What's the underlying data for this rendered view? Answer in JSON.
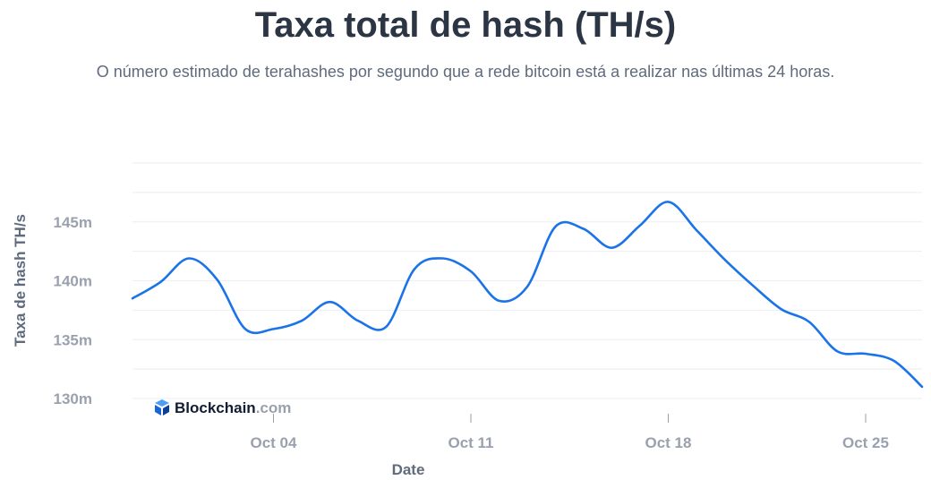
{
  "chart_data": {
    "type": "line",
    "title": "Taxa total de hash (TH/s)",
    "subtitle": "O número estimado de terahashes por segundo que a rede bitcoin está a realizar nas últimas 24 horas.",
    "xlabel": "Date",
    "ylabel": "Taxa de hash TH/s",
    "ylim": [
      130,
      150
    ],
    "xlim": [
      "2021-09-29",
      "2021-10-27"
    ],
    "grid": true,
    "y_ticks": [
      {
        "value": 130,
        "label": "130m"
      },
      {
        "value": 135,
        "label": "135m"
      },
      {
        "value": 140,
        "label": "140m"
      },
      {
        "value": 145,
        "label": "145m"
      }
    ],
    "x_ticks": [
      {
        "date": "2021-10-04",
        "label": "Oct 04"
      },
      {
        "date": "2021-10-11",
        "label": "Oct 11"
      },
      {
        "date": "2021-10-18",
        "label": "Oct 18"
      },
      {
        "date": "2021-10-25",
        "label": "Oct 25"
      }
    ],
    "series": [
      {
        "color": "#1a73e8",
        "points": [
          [
            "2021-09-29",
            138.5
          ],
          [
            "2021-09-30",
            139.9
          ],
          [
            "2021-10-01",
            141.9
          ],
          [
            "2021-10-02",
            140.1
          ],
          [
            "2021-10-03",
            135.9
          ],
          [
            "2021-10-04",
            135.9
          ],
          [
            "2021-10-05",
            136.6
          ],
          [
            "2021-10-06",
            138.2
          ],
          [
            "2021-10-07",
            136.6
          ],
          [
            "2021-10-08",
            136.1
          ],
          [
            "2021-10-09",
            141.0
          ],
          [
            "2021-10-10",
            141.9
          ],
          [
            "2021-10-11",
            140.8
          ],
          [
            "2021-10-12",
            138.3
          ],
          [
            "2021-10-13",
            139.5
          ],
          [
            "2021-10-14",
            144.6
          ],
          [
            "2021-10-15",
            144.4
          ],
          [
            "2021-10-16",
            142.8
          ],
          [
            "2021-10-17",
            144.7
          ],
          [
            "2021-10-18",
            146.7
          ],
          [
            "2021-10-19",
            144.3
          ],
          [
            "2021-10-20",
            141.8
          ],
          [
            "2021-10-21",
            139.6
          ],
          [
            "2021-10-22",
            137.6
          ],
          [
            "2021-10-23",
            136.5
          ],
          [
            "2021-10-24",
            134.0
          ],
          [
            "2021-10-25",
            133.8
          ],
          [
            "2021-10-26",
            133.2
          ],
          [
            "2021-10-27",
            131.0
          ]
        ]
      }
    ]
  },
  "watermark": {
    "brand": "Blockchain",
    "suffix": ".com",
    "icon": "blockchain-logo-icon"
  }
}
